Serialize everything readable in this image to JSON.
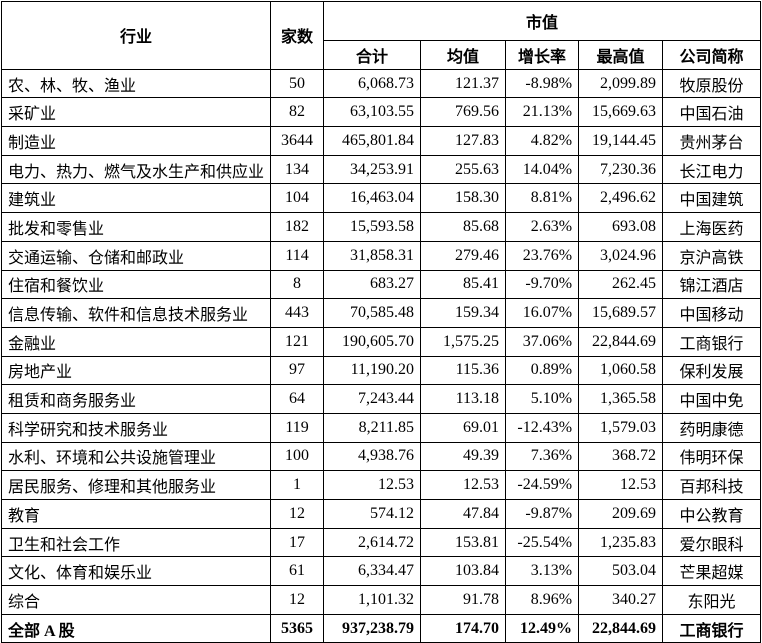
{
  "header": {
    "industry": "行业",
    "count": "家数",
    "market_value": "市值",
    "total": "合计",
    "mean": "均值",
    "growth": "增长率",
    "max": "最高值",
    "company": "公司简称"
  },
  "rows": [
    {
      "industry": "农、林、牧、渔业",
      "count": "50",
      "total": "6,068.73",
      "mean": "121.37",
      "growth": "-8.98%",
      "max": "2,099.89",
      "company": "牧原股份"
    },
    {
      "industry": "采矿业",
      "count": "82",
      "total": "63,103.55",
      "mean": "769.56",
      "growth": "21.13%",
      "max": "15,669.63",
      "company": "中国石油"
    },
    {
      "industry": "制造业",
      "count": "3644",
      "total": "465,801.84",
      "mean": "127.83",
      "growth": "4.82%",
      "max": "19,144.45",
      "company": "贵州茅台"
    },
    {
      "industry": "电力、热力、燃气及水生产和供应业",
      "count": "134",
      "total": "34,253.91",
      "mean": "255.63",
      "growth": "14.04%",
      "max": "7,230.36",
      "company": "长江电力"
    },
    {
      "industry": "建筑业",
      "count": "104",
      "total": "16,463.04",
      "mean": "158.30",
      "growth": "8.81%",
      "max": "2,496.62",
      "company": "中国建筑"
    },
    {
      "industry": "批发和零售业",
      "count": "182",
      "total": "15,593.58",
      "mean": "85.68",
      "growth": "2.63%",
      "max": "693.08",
      "company": "上海医药"
    },
    {
      "industry": "交通运输、仓储和邮政业",
      "count": "114",
      "total": "31,858.31",
      "mean": "279.46",
      "growth": "23.76%",
      "max": "3,024.96",
      "company": "京沪高铁"
    },
    {
      "industry": "住宿和餐饮业",
      "count": "8",
      "total": "683.27",
      "mean": "85.41",
      "growth": "-9.70%",
      "max": "262.45",
      "company": "锦江酒店"
    },
    {
      "industry": "信息传输、软件和信息技术服务业",
      "count": "443",
      "total": "70,585.48",
      "mean": "159.34",
      "growth": "16.07%",
      "max": "15,689.57",
      "company": "中国移动"
    },
    {
      "industry": "金融业",
      "count": "121",
      "total": "190,605.70",
      "mean": "1,575.25",
      "growth": "37.06%",
      "max": "22,844.69",
      "company": "工商银行"
    },
    {
      "industry": "房地产业",
      "count": "97",
      "total": "11,190.20",
      "mean": "115.36",
      "growth": "0.89%",
      "max": "1,060.58",
      "company": "保利发展"
    },
    {
      "industry": "租赁和商务服务业",
      "count": "64",
      "total": "7,243.44",
      "mean": "113.18",
      "growth": "5.10%",
      "max": "1,365.58",
      "company": "中国中免"
    },
    {
      "industry": "科学研究和技术服务业",
      "count": "119",
      "total": "8,211.85",
      "mean": "69.01",
      "growth": "-12.43%",
      "max": "1,579.03",
      "company": "药明康德"
    },
    {
      "industry": "水利、环境和公共设施管理业",
      "count": "100",
      "total": "4,938.76",
      "mean": "49.39",
      "growth": "7.36%",
      "max": "368.72",
      "company": "伟明环保"
    },
    {
      "industry": "居民服务、修理和其他服务业",
      "count": "1",
      "total": "12.53",
      "mean": "12.53",
      "growth": "-24.59%",
      "max": "12.53",
      "company": "百邦科技"
    },
    {
      "industry": "教育",
      "count": "12",
      "total": "574.12",
      "mean": "47.84",
      "growth": "-9.87%",
      "max": "209.69",
      "company": "中公教育"
    },
    {
      "industry": "卫生和社会工作",
      "count": "17",
      "total": "2,614.72",
      "mean": "153.81",
      "growth": "-25.54%",
      "max": "1,235.83",
      "company": "爱尔眼科"
    },
    {
      "industry": "文化、体育和娱乐业",
      "count": "61",
      "total": "6,334.47",
      "mean": "103.84",
      "growth": "3.13%",
      "max": "503.04",
      "company": "芒果超媒"
    },
    {
      "industry": "综合",
      "count": "12",
      "total": "1,101.32",
      "mean": "91.78",
      "growth": "8.96%",
      "max": "340.27",
      "company": "东阳光"
    }
  ],
  "summary": {
    "industry": "全部 A 股",
    "count": "5365",
    "total": "937,238.79",
    "mean": "174.70",
    "growth": "12.49%",
    "max": "22,844.69",
    "company": "工商银行"
  }
}
